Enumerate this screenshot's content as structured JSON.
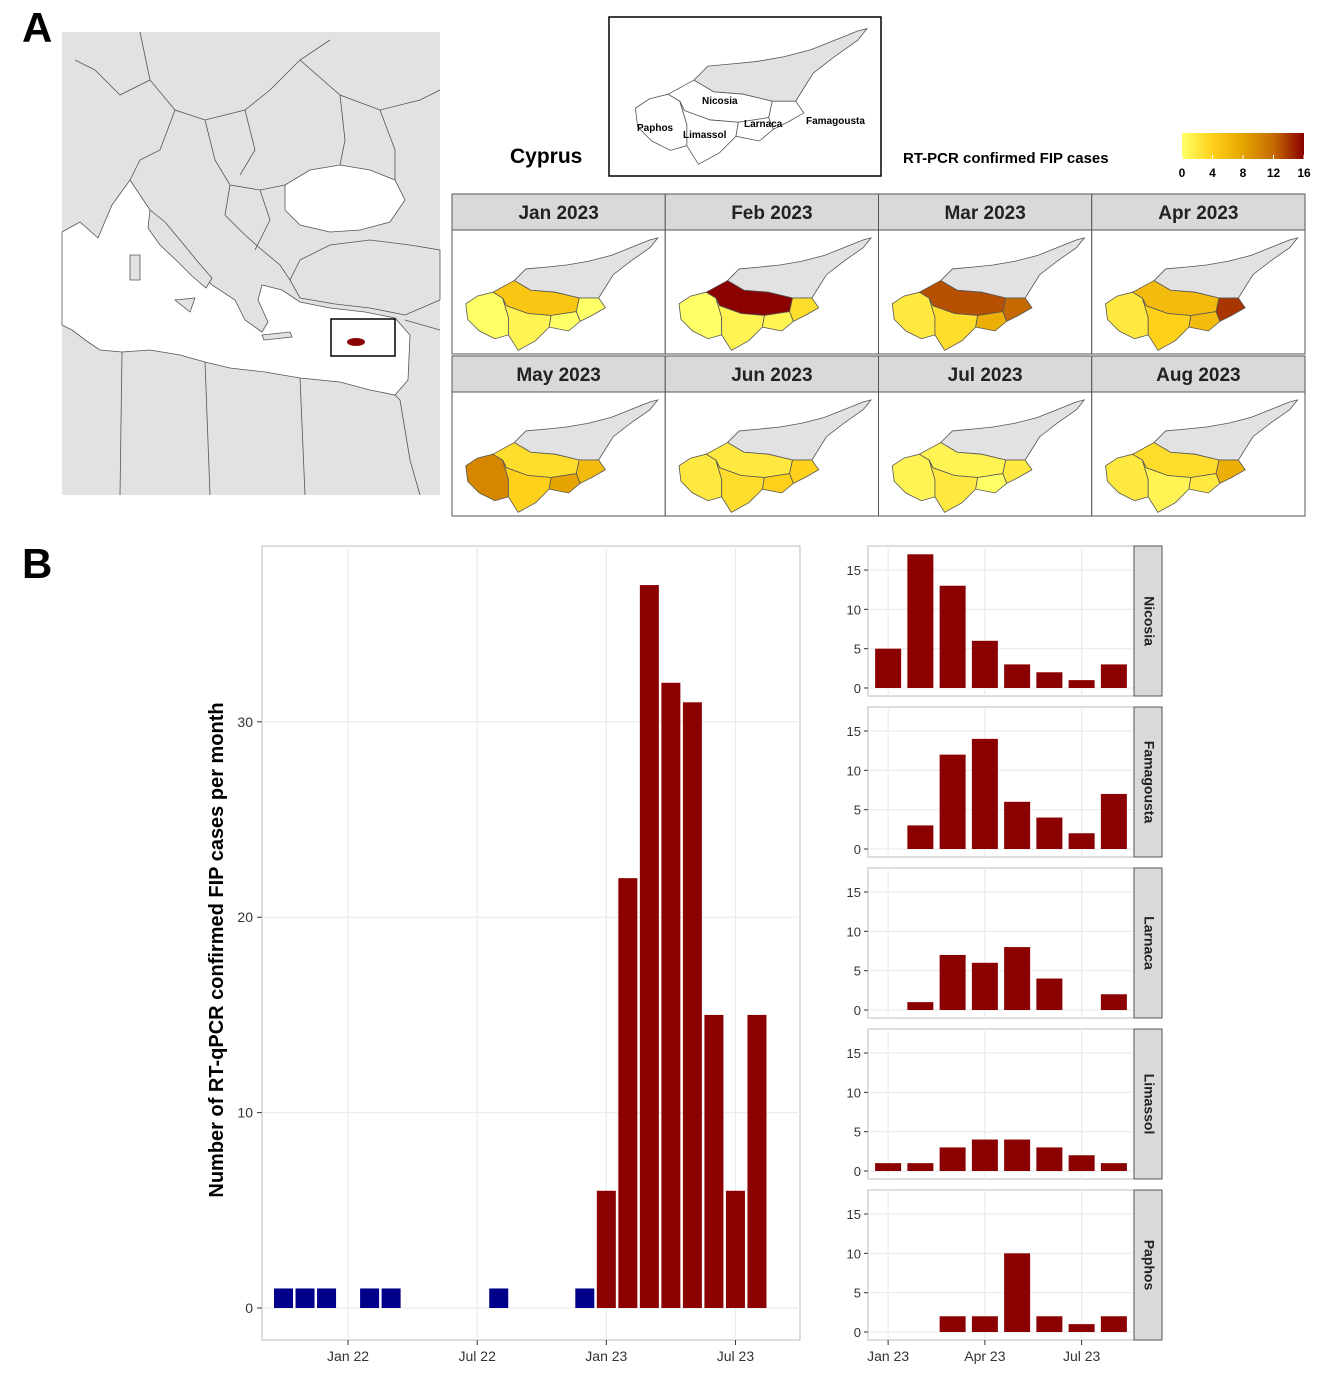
{
  "panel_labels": {
    "a": "A",
    "b": "B"
  },
  "colors": {
    "land": "#e2e2e2",
    "border": "#555555",
    "highlight": "#8b0000",
    "bar_2023": "#8b0000",
    "bar_2021_2022": "#00008b",
    "strip": "#d9d9d9",
    "scale": [
      "#ffff66",
      "#ffd11a",
      "#e5a400",
      "#c56a00",
      "#8b0000"
    ]
  },
  "map": {
    "country_label": "Cyprus",
    "districts": [
      "Nicosia",
      "Paphos",
      "Limassol",
      "Larnaca",
      "Famagousta"
    ],
    "legend_title": "RT-PCR confirmed FIP cases",
    "legend_ticks": [
      0,
      4,
      8,
      12,
      16
    ],
    "legend_range": [
      0,
      16
    ],
    "months": [
      {
        "label": "Jan 2023",
        "cases": {
          "Nicosia": 5,
          "Paphos": 0,
          "Limassol": 1,
          "Larnaca": 0,
          "Famagousta": 0
        }
      },
      {
        "label": "Feb 2023",
        "cases": {
          "Nicosia": 17,
          "Paphos": 0,
          "Limassol": 1,
          "Larnaca": 1,
          "Famagousta": 3
        }
      },
      {
        "label": "Mar 2023",
        "cases": {
          "Nicosia": 13,
          "Paphos": 2,
          "Limassol": 3,
          "Larnaca": 7,
          "Famagousta": 12
        }
      },
      {
        "label": "Apr 2023",
        "cases": {
          "Nicosia": 6,
          "Paphos": 2,
          "Limassol": 4,
          "Larnaca": 6,
          "Famagousta": 14
        }
      },
      {
        "label": "May 2023",
        "cases": {
          "Nicosia": 3,
          "Paphos": 10,
          "Limassol": 4,
          "Larnaca": 8,
          "Famagousta": 6
        }
      },
      {
        "label": "Jun 2023",
        "cases": {
          "Nicosia": 2,
          "Paphos": 2,
          "Limassol": 3,
          "Larnaca": 4,
          "Famagousta": 4
        }
      },
      {
        "label": "Jul 2023",
        "cases": {
          "Nicosia": 1,
          "Paphos": 1,
          "Limassol": 2,
          "Larnaca": 0,
          "Famagousta": 2
        }
      },
      {
        "label": "Aug 2023",
        "cases": {
          "Nicosia": 3,
          "Paphos": 2,
          "Limassol": 1,
          "Larnaca": 2,
          "Famagousta": 7
        }
      }
    ]
  },
  "chart_data": [
    {
      "type": "bar",
      "ylabel": "Number of RT-qPCR confirmed FIP cases per month",
      "xlabel": "",
      "ylim": [
        0,
        39
      ],
      "yticks": [
        0,
        10,
        20,
        30
      ],
      "xlim": [
        "2021-09",
        "2023-10"
      ],
      "xticks": [
        "Jan 22",
        "Jul 22",
        "Jan 23",
        "Jul 23"
      ],
      "grid": true,
      "series": [
        {
          "months": [
            "2021-10",
            "2021-11",
            "2021-12",
            "2022-02",
            "2022-03",
            "2022-08",
            "2022-12"
          ],
          "values": [
            1,
            1,
            1,
            1,
            1,
            1,
            1
          ]
        },
        {
          "months": [
            "2023-01",
            "2023-02",
            "2023-03",
            "2023-04",
            "2023-05",
            "2023-06",
            "2023-07",
            "2023-08"
          ],
          "values": [
            6,
            22,
            37,
            32,
            31,
            15,
            6,
            15
          ]
        }
      ]
    },
    {
      "type": "bar",
      "facets": [
        "Nicosia",
        "Famagousta",
        "Larnaca",
        "Limassol",
        "Paphos"
      ],
      "months": [
        "2023-01",
        "2023-02",
        "2023-03",
        "2023-04",
        "2023-05",
        "2023-06",
        "2023-07",
        "2023-08"
      ],
      "xticks": [
        "Jan 23",
        "Apr 23",
        "Jul 23"
      ],
      "yticks": [
        0,
        5,
        10,
        15
      ],
      "ylim": [
        0,
        17.8
      ],
      "grid": true,
      "series": [
        {
          "name": "Nicosia",
          "values": [
            5,
            17,
            13,
            6,
            3,
            2,
            1,
            3
          ]
        },
        {
          "name": "Famagousta",
          "values": [
            0,
            3,
            12,
            14,
            6,
            4,
            2,
            7
          ]
        },
        {
          "name": "Larnaca",
          "values": [
            0,
            1,
            7,
            6,
            8,
            4,
            0,
            2
          ]
        },
        {
          "name": "Limassol",
          "values": [
            1,
            1,
            3,
            4,
            4,
            3,
            2,
            1
          ]
        },
        {
          "name": "Paphos",
          "values": [
            0,
            0,
            2,
            2,
            10,
            2,
            1,
            2
          ]
        }
      ]
    }
  ]
}
